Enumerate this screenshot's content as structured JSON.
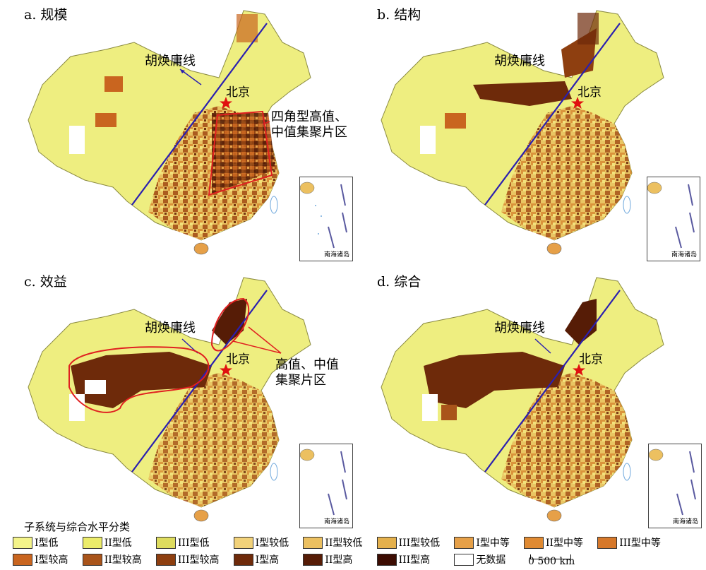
{
  "panels": [
    {
      "title": "a. 规模",
      "hu_label": "胡焕庸线",
      "beijing": "北京",
      "zone_label": [
        "四角型高值、",
        "中值集聚片区"
      ],
      "inset_label": "南海诸岛"
    },
    {
      "title": "b. 结构",
      "hu_label": "胡焕庸线",
      "beijing": "北京",
      "inset_label": "南海诸岛"
    },
    {
      "title": "c. 效益",
      "hu_label": "胡焕庸线",
      "beijing": "北京",
      "zone_label": [
        "高值、中值",
        "集聚片区"
      ],
      "inset_label": "南海诸岛"
    },
    {
      "title": "d. 综合",
      "hu_label": "胡焕庸线",
      "beijing": "北京",
      "inset_label": "南海诸岛"
    }
  ],
  "legend": {
    "title": "子系统与综合水平分类",
    "items": [
      {
        "label": "I型低",
        "color": "#f4f48a"
      },
      {
        "label": "II型低",
        "color": "#ecec6a"
      },
      {
        "label": "III型低",
        "color": "#dedc5e"
      },
      {
        "label": "I型较低",
        "color": "#f2d27a"
      },
      {
        "label": "II型较低",
        "color": "#ecc060"
      },
      {
        "label": "III型较低",
        "color": "#e4b04c"
      },
      {
        "label": "I型中等",
        "color": "#e6a048"
      },
      {
        "label": "II型中等",
        "color": "#e08a32"
      },
      {
        "label": "III型中等",
        "color": "#d6782a"
      },
      {
        "label": "I型较高",
        "color": "#c9651f"
      },
      {
        "label": "II型较高",
        "color": "#a9541a"
      },
      {
        "label": "III型较高",
        "color": "#8e3f10"
      },
      {
        "label": "I型高",
        "color": "#6e2a0a"
      },
      {
        "label": "II型高",
        "color": "#561c06"
      },
      {
        "label": "III型高",
        "color": "#3c0c02"
      },
      {
        "label": "无数据",
        "color": "#ffffff"
      }
    ]
  },
  "scale": "0   500 km",
  "colors": {
    "hu_line": "#2a1fb0",
    "star": "#e01010",
    "highlight": "#e02020",
    "sea": "#6fa8dc"
  }
}
